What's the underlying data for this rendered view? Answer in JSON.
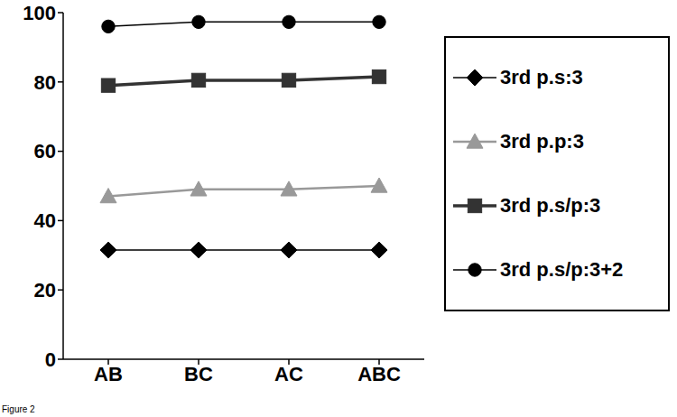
{
  "chart_data": {
    "type": "line",
    "caption": "Figure 2",
    "categories": [
      "AB",
      "BC",
      "AC",
      "ABC"
    ],
    "series": [
      {
        "name": "3rd p.s:3",
        "color": "#000000",
        "marker": "diamond",
        "values": [
          31.5,
          31.5,
          31.5,
          31.5
        ]
      },
      {
        "name": "3rd p.p:3",
        "color": "#999999",
        "marker": "triangle",
        "values": [
          47,
          49,
          49,
          50
        ]
      },
      {
        "name": "3rd p.s/p:3",
        "color": "#333333",
        "marker": "square",
        "values": [
          79,
          80.5,
          80.5,
          81.5
        ]
      },
      {
        "name": "3rd p.s/p:3+2",
        "color": "#000000",
        "marker": "circle",
        "values": [
          96,
          97.3,
          97.3,
          97.3
        ]
      }
    ],
    "ylim": [
      0,
      100
    ],
    "yticks": [
      0,
      20,
      40,
      60,
      80,
      100
    ],
    "grid": false,
    "legend": "right"
  }
}
